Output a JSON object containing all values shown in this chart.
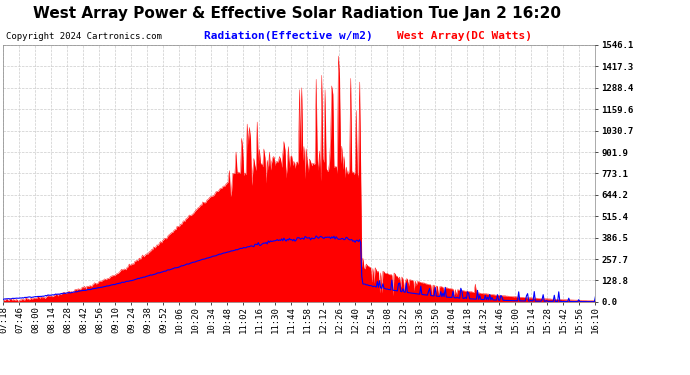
{
  "title": "West Array Power & Effective Solar Radiation Tue Jan 2 16:20",
  "copyright": "Copyright 2024 Cartronics.com",
  "legend_radiation": "Radiation(Effective w/m2)",
  "legend_west": "West Array(DC Watts)",
  "yticks": [
    0.0,
    128.8,
    257.7,
    386.5,
    515.4,
    644.2,
    773.1,
    901.9,
    1030.7,
    1159.6,
    1288.4,
    1417.3,
    1546.1
  ],
  "ymax": 1546.1,
  "ymin": 0.0,
  "bg_color": "#ffffff",
  "plot_bg_color": "#ffffff",
  "radiation_fill_color": "#ff0000",
  "radiation_line_color": "#ff0000",
  "west_line_color": "#0000ff",
  "grid_color": "#cccccc",
  "title_color": "#000000",
  "copyright_color": "#000000",
  "radiation_legend_color": "#0000ff",
  "west_legend_color": "#ff0000",
  "xtick_labels": [
    "07:18",
    "07:46",
    "08:00",
    "08:14",
    "08:28",
    "08:42",
    "08:56",
    "09:10",
    "09:24",
    "09:38",
    "09:52",
    "10:06",
    "10:20",
    "10:34",
    "10:48",
    "11:02",
    "11:16",
    "11:30",
    "11:44",
    "11:58",
    "12:12",
    "12:26",
    "12:40",
    "12:54",
    "13:08",
    "13:22",
    "13:36",
    "13:50",
    "14:04",
    "14:18",
    "14:32",
    "14:46",
    "15:00",
    "15:14",
    "15:28",
    "15:42",
    "15:56",
    "16:10"
  ],
  "title_fontsize": 11,
  "label_fontsize": 6.5,
  "copyright_fontsize": 6.5,
  "legend_fontsize": 8
}
